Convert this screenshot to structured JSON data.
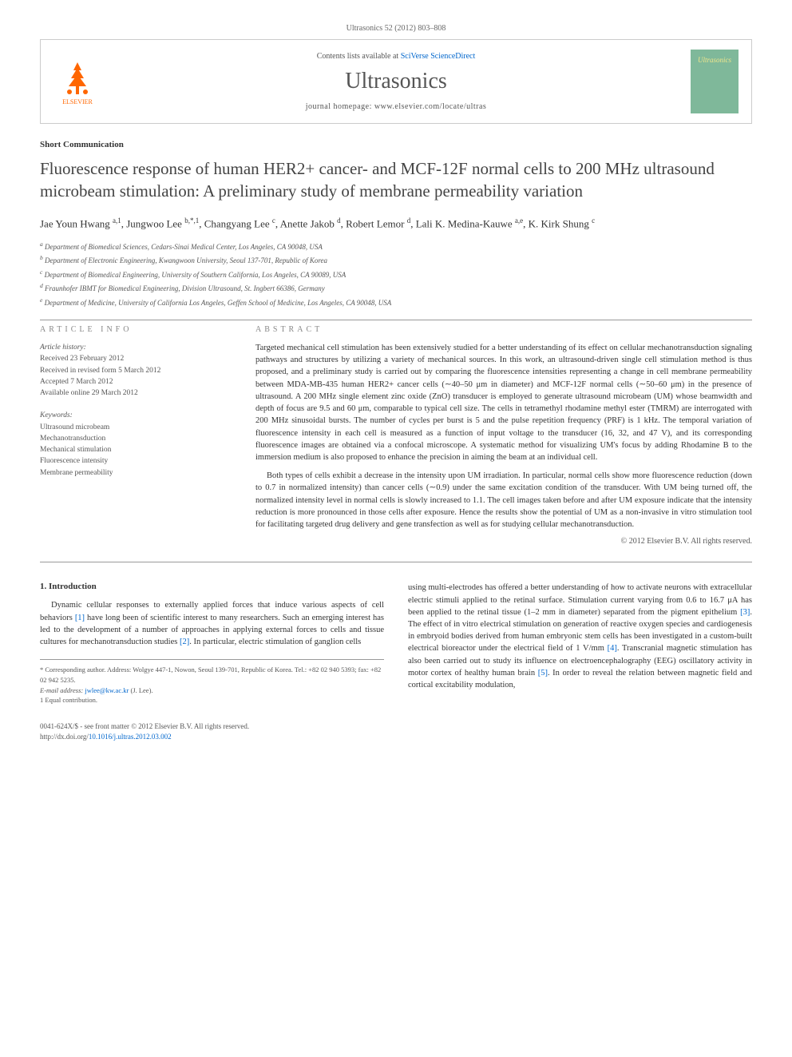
{
  "header": {
    "citation": "Ultrasonics 52 (2012) 803–808",
    "contents_prefix": "Contents lists available at ",
    "contents_link": "SciVerse ScienceDirect",
    "journal": "Ultrasonics",
    "homepage_prefix": "journal homepage: ",
    "homepage_url": "www.elsevier.com/locate/ultras",
    "publisher_label": "ELSEVIER",
    "cover_label": "Ultrasonics"
  },
  "article": {
    "type": "Short Communication",
    "title": "Fluorescence response of human HER2+ cancer- and MCF-12F normal cells to 200 MHz ultrasound microbeam stimulation: A preliminary study of membrane permeability variation",
    "authors_html": "Jae Youn Hwang <sup>a,1</sup>, Jungwoo Lee <sup>b,*,1</sup>, Changyang Lee <sup>c</sup>, Anette Jakob <sup>d</sup>, Robert Lemor <sup>d</sup>, Lali K. Medina-Kauwe <sup>a,e</sup>, K. Kirk Shung <sup>c</sup>",
    "affiliations": [
      "a Department of Biomedical Sciences, Cedars-Sinai Medical Center, Los Angeles, CA 90048, USA",
      "b Department of Electronic Engineering, Kwangwoon University, Seoul 137-701, Republic of Korea",
      "c Department of Biomedical Engineering, University of Southern California, Los Angeles, CA 90089, USA",
      "d Fraunhofer IBMT for Biomedical Engineering, Division Ultrasound, St. Ingbert 66386, Germany",
      "e Department of Medicine, University of California Los Angeles, Geffen School of Medicine, Los Angeles, CA 90048, USA"
    ]
  },
  "info": {
    "section_label": "ARTICLE INFO",
    "history_head": "Article history:",
    "history": [
      "Received 23 February 2012",
      "Received in revised form 5 March 2012",
      "Accepted 7 March 2012",
      "Available online 29 March 2012"
    ],
    "keywords_head": "Keywords:",
    "keywords": [
      "Ultrasound microbeam",
      "Mechanotransduction",
      "Mechanical stimulation",
      "Fluorescence intensity",
      "Membrane permeability"
    ]
  },
  "abstract": {
    "section_label": "ABSTRACT",
    "p1": "Targeted mechanical cell stimulation has been extensively studied for a better understanding of its effect on cellular mechanotransduction signaling pathways and structures by utilizing a variety of mechanical sources. In this work, an ultrasound-driven single cell stimulation method is thus proposed, and a preliminary study is carried out by comparing the fluorescence intensities representing a change in cell membrane permeability between MDA-MB-435 human HER2+ cancer cells (∼40–50 μm in diameter) and MCF-12F normal cells (∼50–60 μm) in the presence of ultrasound. A 200 MHz single element zinc oxide (ZnO) transducer is employed to generate ultrasound microbeam (UM) whose beamwidth and depth of focus are 9.5 and 60 μm, comparable to typical cell size. The cells in tetramethyl rhodamine methyl ester (TMRM) are interrogated with 200 MHz sinusoidal bursts. The number of cycles per burst is 5 and the pulse repetition frequency (PRF) is 1 kHz. The temporal variation of fluorescence intensity in each cell is measured as a function of input voltage to the transducer (16, 32, and 47 V), and its corresponding fluorescence images are obtained via a confocal microscope. A systematic method for visualizing UM's focus by adding Rhodamine B to the immersion medium is also proposed to enhance the precision in aiming the beam at an individual cell.",
    "p2": "Both types of cells exhibit a decrease in the intensity upon UM irradiation. In particular, normal cells show more fluorescence reduction (down to 0.7 in normalized intensity) than cancer cells (∼0.9) under the same excitation condition of the transducer. With UM being turned off, the normalized intensity level in normal cells is slowly increased to 1.1. The cell images taken before and after UM exposure indicate that the intensity reduction is more pronounced in those cells after exposure. Hence the results show the potential of UM as a non-invasive in vitro stimulation tool for facilitating targeted drug delivery and gene transfection as well as for studying cellular mechanotransduction.",
    "copyright": "© 2012 Elsevier B.V. All rights reserved."
  },
  "body": {
    "heading": "1. Introduction",
    "left_p": "Dynamic cellular responses to externally applied forces that induce various aspects of cell behaviors [1] have long been of scientific interest to many researchers. Such an emerging interest has led to the development of a number of approaches in applying external forces to cells and tissue cultures for mechanotransduction studies [2]. In particular, electric stimulation of ganglion cells",
    "right_p": "using multi-electrodes has offered a better understanding of how to activate neurons with extracellular electric stimuli applied to the retinal surface. Stimulation current varying from 0.6 to 16.7 μA has been applied to the retinal tissue (1–2 mm in diameter) separated from the pigment epithelium [3]. The effect of in vitro electrical stimulation on generation of reactive oxygen species and cardiogenesis in embryoid bodies derived from human embryonic stem cells has been investigated in a custom-built electrical bioreactor under the electrical field of 1 V/mm [4]. Transcranial magnetic stimulation has also been carried out to study its influence on electroencephalography (EEG) oscillatory activity in motor cortex of healthy human brain [5]. In order to reveal the relation between magnetic field and cortical excitability modulation,",
    "refs": {
      "r1": "[1]",
      "r2": "[2]",
      "r3": "[3]",
      "r4": "[4]",
      "r5": "[5]"
    }
  },
  "footnotes": {
    "corr": "* Corresponding author. Address: Wolgye 447-1, Nowon, Seoul 139-701, Republic of Korea. Tel.: +82 02 940 5393; fax: +82 02 942 5235.",
    "email_label": "E-mail address: ",
    "email": "jwlee@kw.ac.kr",
    "email_suffix": " (J. Lee).",
    "equal": "1 Equal contribution."
  },
  "doi": {
    "line1": "0041-624X/$ - see front matter © 2012 Elsevier B.V. All rights reserved.",
    "line2_prefix": "http://dx.doi.org/",
    "line2_link": "10.1016/j.ultras.2012.03.002"
  },
  "colors": {
    "link": "#0066cc",
    "text": "#333333",
    "muted": "#555555",
    "border": "#cccccc",
    "elsevier": "#ff6600",
    "cover_bg": "#7fb89a"
  }
}
